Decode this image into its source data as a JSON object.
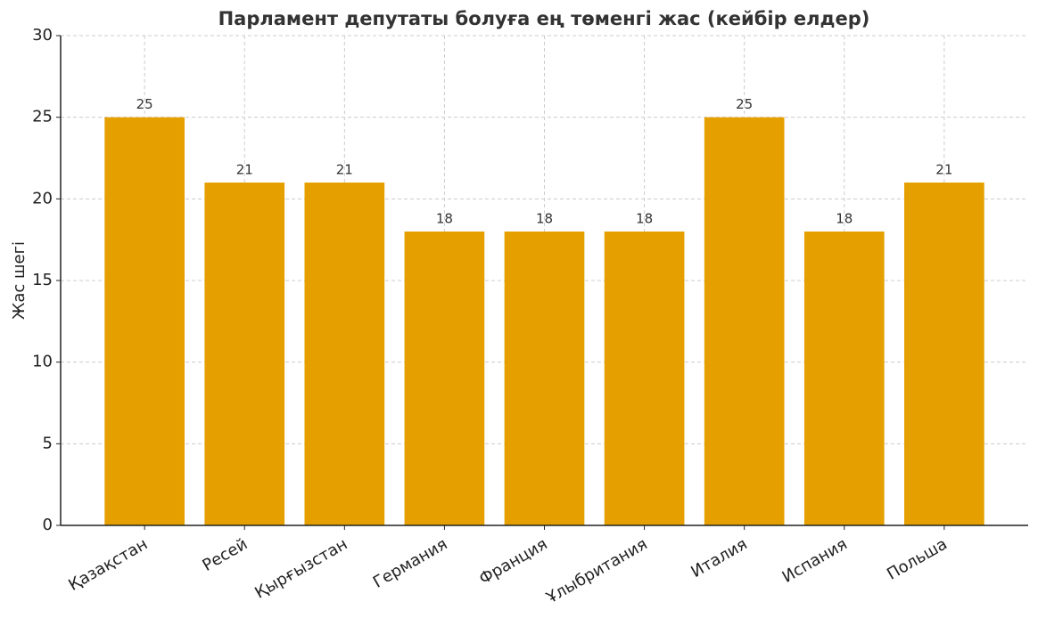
{
  "chart_data": {
    "type": "bar",
    "title": "Парламент депутаты болуға ең төменгі жас (кейбір елдер)",
    "y_label": "Жас шегі",
    "categories": [
      "Қазақстан",
      "Ресей",
      "Қырғызстан",
      "Германия",
      "Франция",
      "Ұлыбритания",
      "Италия",
      "Испания",
      "Польша"
    ],
    "values": [
      25,
      21,
      21,
      18,
      18,
      18,
      25,
      18,
      21
    ],
    "color": "#e5a000",
    "ylim": [
      0,
      30
    ],
    "yticks": [
      0,
      5,
      10,
      15,
      20,
      25,
      30
    ],
    "grid": true
  }
}
